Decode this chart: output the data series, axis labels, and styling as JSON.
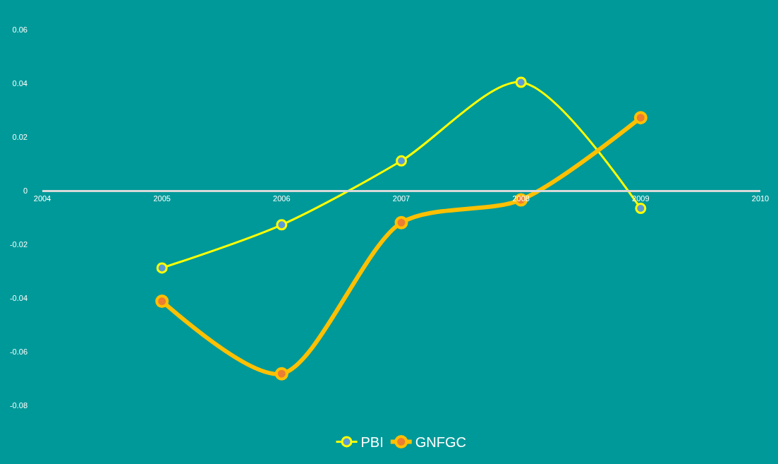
{
  "chart_data": {
    "type": "line",
    "x": [
      2005,
      2006,
      2007,
      2008,
      2009
    ],
    "series": [
      {
        "name": "PBI",
        "color": "#ffff00",
        "values": [
          -0.0288,
          -0.0127,
          0.0111,
          0.0404,
          -0.0066
        ]
      },
      {
        "name": "GNFGC",
        "color": "#ffc000",
        "values": [
          -0.0412,
          -0.0682,
          -0.0119,
          -0.0034,
          0.0272
        ]
      }
    ],
    "xlim": [
      2004,
      2010
    ],
    "xticks": [
      2004,
      2005,
      2006,
      2007,
      2008,
      2009,
      2010
    ],
    "ylim": [
      -0.08,
      0.06
    ],
    "yticks": [
      0.06,
      0.04,
      0.02,
      0,
      -0.02,
      -0.04,
      -0.06,
      -0.08
    ],
    "grid": false,
    "legend": "bottom",
    "marker": "circle",
    "line_style": "solid"
  }
}
